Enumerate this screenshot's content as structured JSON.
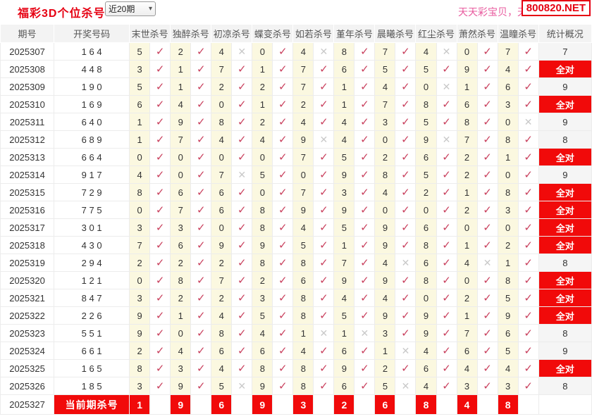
{
  "header": {
    "title": "福彩3D个位杀号",
    "range_value": "近20期",
    "watermark": "天天彩宝贝，天",
    "site_badge": "800820.NET"
  },
  "icons": {
    "check": "✓",
    "cross": "✕",
    "dropdown_arrow": "▾"
  },
  "colors": {
    "accent_red": "#e60012",
    "alert_red": "#f10a0a",
    "check_red": "#c9415e",
    "cross_gray": "#c9c9c9",
    "cell_yellow": "#fbf8e0",
    "pink": "#e85a9e"
  },
  "table": {
    "columns": [
      "期号",
      "开奖号码",
      "末世杀号",
      "独醉杀号",
      "初凉杀号",
      "蝶变杀号",
      "如若杀号",
      "堇年杀号",
      "晨曦杀号",
      "红尘杀号",
      "萧然杀号",
      "温瞳杀号",
      "统计概况"
    ],
    "all_correct_label": "全对",
    "rows": [
      {
        "period": "2025307",
        "draw": "164",
        "kills": [
          {
            "n": 5,
            "ok": true
          },
          {
            "n": 2,
            "ok": true
          },
          {
            "n": 4,
            "ok": false
          },
          {
            "n": 0,
            "ok": true
          },
          {
            "n": 4,
            "ok": false
          },
          {
            "n": 8,
            "ok": true
          },
          {
            "n": 7,
            "ok": true
          },
          {
            "n": 4,
            "ok": false
          },
          {
            "n": 0,
            "ok": true
          },
          {
            "n": 7,
            "ok": true
          }
        ],
        "result": "7"
      },
      {
        "period": "2025308",
        "draw": "448",
        "kills": [
          {
            "n": 3,
            "ok": true
          },
          {
            "n": 1,
            "ok": true
          },
          {
            "n": 7,
            "ok": true
          },
          {
            "n": 1,
            "ok": true
          },
          {
            "n": 7,
            "ok": true
          },
          {
            "n": 6,
            "ok": true
          },
          {
            "n": 5,
            "ok": true
          },
          {
            "n": 5,
            "ok": true
          },
          {
            "n": 9,
            "ok": true
          },
          {
            "n": 4,
            "ok": true
          }
        ],
        "result": "全对"
      },
      {
        "period": "2025309",
        "draw": "190",
        "kills": [
          {
            "n": 5,
            "ok": true
          },
          {
            "n": 1,
            "ok": true
          },
          {
            "n": 2,
            "ok": true
          },
          {
            "n": 2,
            "ok": true
          },
          {
            "n": 7,
            "ok": true
          },
          {
            "n": 1,
            "ok": true
          },
          {
            "n": 4,
            "ok": true
          },
          {
            "n": 0,
            "ok": false
          },
          {
            "n": 1,
            "ok": true
          },
          {
            "n": 6,
            "ok": true
          }
        ],
        "result": "9"
      },
      {
        "period": "2025310",
        "draw": "169",
        "kills": [
          {
            "n": 6,
            "ok": true
          },
          {
            "n": 4,
            "ok": true
          },
          {
            "n": 0,
            "ok": true
          },
          {
            "n": 1,
            "ok": true
          },
          {
            "n": 2,
            "ok": true
          },
          {
            "n": 1,
            "ok": true
          },
          {
            "n": 7,
            "ok": true
          },
          {
            "n": 8,
            "ok": true
          },
          {
            "n": 6,
            "ok": true
          },
          {
            "n": 3,
            "ok": true
          }
        ],
        "result": "全对"
      },
      {
        "period": "2025311",
        "draw": "640",
        "kills": [
          {
            "n": 1,
            "ok": true
          },
          {
            "n": 9,
            "ok": true
          },
          {
            "n": 8,
            "ok": true
          },
          {
            "n": 2,
            "ok": true
          },
          {
            "n": 4,
            "ok": true
          },
          {
            "n": 4,
            "ok": true
          },
          {
            "n": 3,
            "ok": true
          },
          {
            "n": 5,
            "ok": true
          },
          {
            "n": 8,
            "ok": true
          },
          {
            "n": 0,
            "ok": false
          }
        ],
        "result": "9"
      },
      {
        "period": "2025312",
        "draw": "689",
        "kills": [
          {
            "n": 1,
            "ok": true
          },
          {
            "n": 7,
            "ok": true
          },
          {
            "n": 4,
            "ok": true
          },
          {
            "n": 4,
            "ok": true
          },
          {
            "n": 9,
            "ok": false
          },
          {
            "n": 4,
            "ok": true
          },
          {
            "n": 0,
            "ok": true
          },
          {
            "n": 9,
            "ok": false
          },
          {
            "n": 7,
            "ok": true
          },
          {
            "n": 8,
            "ok": true
          }
        ],
        "result": "8"
      },
      {
        "period": "2025313",
        "draw": "664",
        "kills": [
          {
            "n": 0,
            "ok": true
          },
          {
            "n": 0,
            "ok": true
          },
          {
            "n": 0,
            "ok": true
          },
          {
            "n": 0,
            "ok": true
          },
          {
            "n": 7,
            "ok": true
          },
          {
            "n": 5,
            "ok": true
          },
          {
            "n": 2,
            "ok": true
          },
          {
            "n": 6,
            "ok": true
          },
          {
            "n": 2,
            "ok": true
          },
          {
            "n": 1,
            "ok": true
          }
        ],
        "result": "全对"
      },
      {
        "period": "2025314",
        "draw": "917",
        "kills": [
          {
            "n": 4,
            "ok": true
          },
          {
            "n": 0,
            "ok": true
          },
          {
            "n": 7,
            "ok": false
          },
          {
            "n": 5,
            "ok": true
          },
          {
            "n": 0,
            "ok": true
          },
          {
            "n": 9,
            "ok": true
          },
          {
            "n": 8,
            "ok": true
          },
          {
            "n": 5,
            "ok": true
          },
          {
            "n": 2,
            "ok": true
          },
          {
            "n": 0,
            "ok": true
          }
        ],
        "result": "9"
      },
      {
        "period": "2025315",
        "draw": "729",
        "kills": [
          {
            "n": 8,
            "ok": true
          },
          {
            "n": 6,
            "ok": true
          },
          {
            "n": 6,
            "ok": true
          },
          {
            "n": 0,
            "ok": true
          },
          {
            "n": 7,
            "ok": true
          },
          {
            "n": 3,
            "ok": true
          },
          {
            "n": 4,
            "ok": true
          },
          {
            "n": 2,
            "ok": true
          },
          {
            "n": 1,
            "ok": true
          },
          {
            "n": 8,
            "ok": true
          }
        ],
        "result": "全对"
      },
      {
        "period": "2025316",
        "draw": "775",
        "kills": [
          {
            "n": 0,
            "ok": true
          },
          {
            "n": 7,
            "ok": true
          },
          {
            "n": 6,
            "ok": true
          },
          {
            "n": 8,
            "ok": true
          },
          {
            "n": 9,
            "ok": true
          },
          {
            "n": 9,
            "ok": true
          },
          {
            "n": 0,
            "ok": true
          },
          {
            "n": 0,
            "ok": true
          },
          {
            "n": 2,
            "ok": true
          },
          {
            "n": 3,
            "ok": true
          }
        ],
        "result": "全对"
      },
      {
        "period": "2025317",
        "draw": "301",
        "kills": [
          {
            "n": 3,
            "ok": true
          },
          {
            "n": 3,
            "ok": true
          },
          {
            "n": 0,
            "ok": true
          },
          {
            "n": 8,
            "ok": true
          },
          {
            "n": 4,
            "ok": true
          },
          {
            "n": 5,
            "ok": true
          },
          {
            "n": 9,
            "ok": true
          },
          {
            "n": 6,
            "ok": true
          },
          {
            "n": 0,
            "ok": true
          },
          {
            "n": 0,
            "ok": true
          }
        ],
        "result": "全对"
      },
      {
        "period": "2025318",
        "draw": "430",
        "kills": [
          {
            "n": 7,
            "ok": true
          },
          {
            "n": 6,
            "ok": true
          },
          {
            "n": 9,
            "ok": true
          },
          {
            "n": 9,
            "ok": true
          },
          {
            "n": 5,
            "ok": true
          },
          {
            "n": 1,
            "ok": true
          },
          {
            "n": 9,
            "ok": true
          },
          {
            "n": 8,
            "ok": true
          },
          {
            "n": 1,
            "ok": true
          },
          {
            "n": 2,
            "ok": true
          }
        ],
        "result": "全对"
      },
      {
        "period": "2025319",
        "draw": "294",
        "kills": [
          {
            "n": 2,
            "ok": true
          },
          {
            "n": 2,
            "ok": true
          },
          {
            "n": 2,
            "ok": true
          },
          {
            "n": 8,
            "ok": true
          },
          {
            "n": 8,
            "ok": true
          },
          {
            "n": 7,
            "ok": true
          },
          {
            "n": 4,
            "ok": false
          },
          {
            "n": 6,
            "ok": true
          },
          {
            "n": 4,
            "ok": false
          },
          {
            "n": 1,
            "ok": true
          }
        ],
        "result": "8"
      },
      {
        "period": "2025320",
        "draw": "121",
        "kills": [
          {
            "n": 0,
            "ok": true
          },
          {
            "n": 8,
            "ok": true
          },
          {
            "n": 7,
            "ok": true
          },
          {
            "n": 2,
            "ok": true
          },
          {
            "n": 6,
            "ok": true
          },
          {
            "n": 9,
            "ok": true
          },
          {
            "n": 9,
            "ok": true
          },
          {
            "n": 8,
            "ok": true
          },
          {
            "n": 0,
            "ok": true
          },
          {
            "n": 8,
            "ok": true
          }
        ],
        "result": "全对"
      },
      {
        "period": "2025321",
        "draw": "847",
        "kills": [
          {
            "n": 3,
            "ok": true
          },
          {
            "n": 2,
            "ok": true
          },
          {
            "n": 2,
            "ok": true
          },
          {
            "n": 3,
            "ok": true
          },
          {
            "n": 8,
            "ok": true
          },
          {
            "n": 4,
            "ok": true
          },
          {
            "n": 4,
            "ok": true
          },
          {
            "n": 0,
            "ok": true
          },
          {
            "n": 2,
            "ok": true
          },
          {
            "n": 5,
            "ok": true
          }
        ],
        "result": "全对"
      },
      {
        "period": "2025322",
        "draw": "226",
        "kills": [
          {
            "n": 9,
            "ok": true
          },
          {
            "n": 1,
            "ok": true
          },
          {
            "n": 4,
            "ok": true
          },
          {
            "n": 5,
            "ok": true
          },
          {
            "n": 8,
            "ok": true
          },
          {
            "n": 5,
            "ok": true
          },
          {
            "n": 9,
            "ok": true
          },
          {
            "n": 9,
            "ok": true
          },
          {
            "n": 1,
            "ok": true
          },
          {
            "n": 9,
            "ok": true
          }
        ],
        "result": "全对"
      },
      {
        "period": "2025323",
        "draw": "551",
        "kills": [
          {
            "n": 9,
            "ok": true
          },
          {
            "n": 0,
            "ok": true
          },
          {
            "n": 8,
            "ok": true
          },
          {
            "n": 4,
            "ok": true
          },
          {
            "n": 1,
            "ok": false
          },
          {
            "n": 1,
            "ok": false
          },
          {
            "n": 3,
            "ok": true
          },
          {
            "n": 9,
            "ok": true
          },
          {
            "n": 7,
            "ok": true
          },
          {
            "n": 6,
            "ok": true
          }
        ],
        "result": "8"
      },
      {
        "period": "2025324",
        "draw": "661",
        "kills": [
          {
            "n": 2,
            "ok": true
          },
          {
            "n": 4,
            "ok": true
          },
          {
            "n": 6,
            "ok": true
          },
          {
            "n": 6,
            "ok": true
          },
          {
            "n": 4,
            "ok": true
          },
          {
            "n": 6,
            "ok": true
          },
          {
            "n": 1,
            "ok": false
          },
          {
            "n": 4,
            "ok": true
          },
          {
            "n": 6,
            "ok": true
          },
          {
            "n": 5,
            "ok": true
          }
        ],
        "result": "9"
      },
      {
        "period": "2025325",
        "draw": "165",
        "kills": [
          {
            "n": 8,
            "ok": true
          },
          {
            "n": 3,
            "ok": true
          },
          {
            "n": 4,
            "ok": true
          },
          {
            "n": 8,
            "ok": true
          },
          {
            "n": 8,
            "ok": true
          },
          {
            "n": 9,
            "ok": true
          },
          {
            "n": 2,
            "ok": true
          },
          {
            "n": 6,
            "ok": true
          },
          {
            "n": 4,
            "ok": true
          },
          {
            "n": 4,
            "ok": true
          }
        ],
        "result": "全对"
      },
      {
        "period": "2025326",
        "draw": "185",
        "kills": [
          {
            "n": 3,
            "ok": true
          },
          {
            "n": 9,
            "ok": true
          },
          {
            "n": 5,
            "ok": false
          },
          {
            "n": 9,
            "ok": true
          },
          {
            "n": 8,
            "ok": true
          },
          {
            "n": 6,
            "ok": true
          },
          {
            "n": 5,
            "ok": false
          },
          {
            "n": 4,
            "ok": true
          },
          {
            "n": 3,
            "ok": true
          },
          {
            "n": 3,
            "ok": true
          }
        ],
        "result": "8"
      }
    ],
    "current": {
      "period": "2025327",
      "label": "当前期杀号",
      "kills": [
        1,
        9,
        6,
        9,
        3,
        2,
        6,
        8,
        4,
        8
      ]
    }
  }
}
